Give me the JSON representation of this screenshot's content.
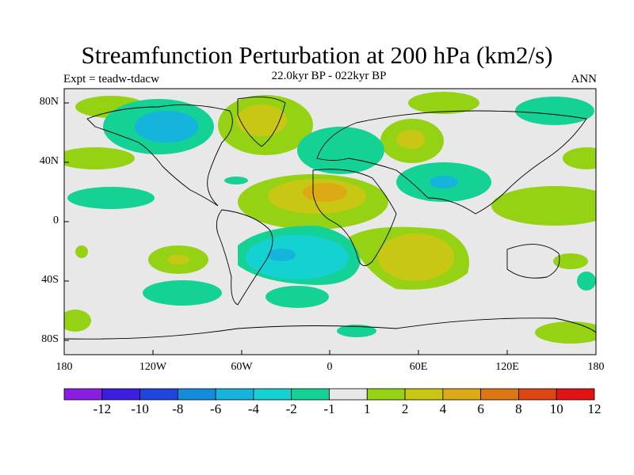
{
  "header": {
    "title": "Streamfunction Perturbation at 200 hPa (km2/s)",
    "left": "Expt = teadw-tdacw",
    "center": "22.0kyr BP - 022kyr BP",
    "right": "ANN"
  },
  "map": {
    "lat_labels": [
      "80N",
      "40N",
      "0",
      "40S",
      "80S"
    ],
    "lon_labels": [
      "180",
      "120W",
      "60W",
      "0",
      "60E",
      "120E",
      "180"
    ],
    "land_color": "#e8e8e8"
  },
  "colorbar": {
    "labels": [
      "-12",
      "-10",
      "-8",
      "-6",
      "-4",
      "-2",
      "-1",
      "1",
      "2",
      "4",
      "6",
      "8",
      "10",
      "12"
    ],
    "colors": [
      "#8a1ee0",
      "#3c1ee0",
      "#1e46dc",
      "#148cdc",
      "#14b4dc",
      "#14d2d2",
      "#14d296",
      "#e8e8e8",
      "#96d214",
      "#c8c814",
      "#dcaa14",
      "#dc7814",
      "#dc4614",
      "#e01414"
    ]
  }
}
